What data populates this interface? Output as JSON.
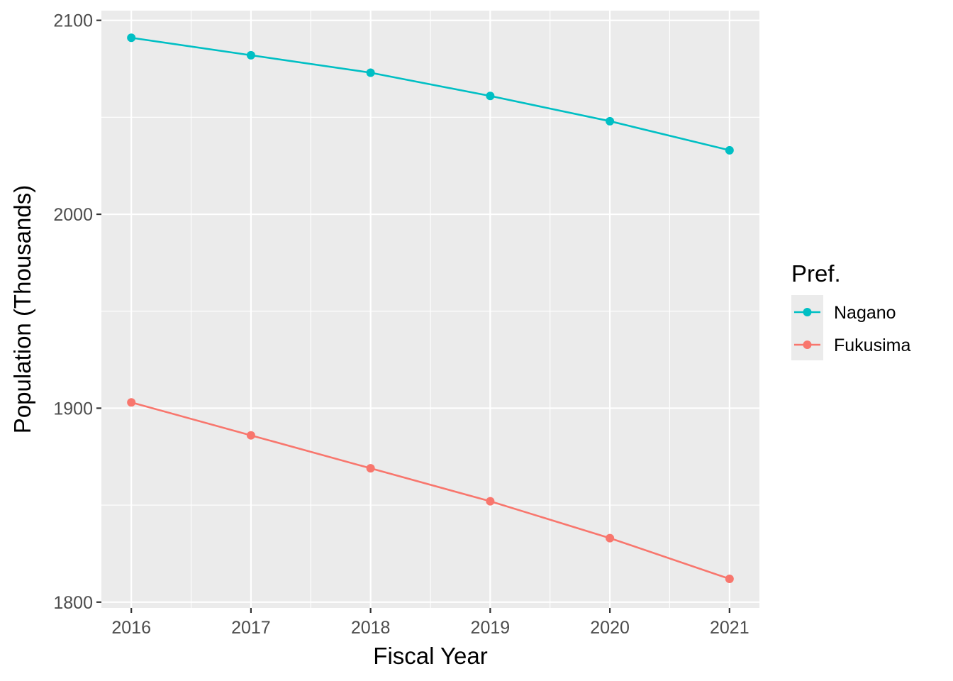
{
  "chart_data": {
    "type": "line",
    "xlabel": "Fiscal Year",
    "ylabel": "Population (Thousands)",
    "x": [
      2016,
      2017,
      2018,
      2019,
      2020,
      2021
    ],
    "x_tick_labels": [
      "2016",
      "2017",
      "2018",
      "2019",
      "2020",
      "2021"
    ],
    "y_ticks": [
      1800,
      1900,
      2000,
      2100
    ],
    "y_tick_labels": [
      "1800",
      "1900",
      "2000",
      "2100"
    ],
    "ylim": [
      1797,
      2105
    ],
    "xlim": [
      2015.75,
      2021.25
    ],
    "grid": true,
    "legend": {
      "title": "Pref.",
      "position": "right",
      "entries": [
        "Nagano",
        "Fukusima"
      ]
    },
    "series": [
      {
        "name": "Nagano",
        "color": "#00BFC4",
        "values": [
          2091,
          2082,
          2073,
          2061,
          2048,
          2033
        ]
      },
      {
        "name": "Fukusima",
        "color": "#F8766D",
        "values": [
          1903,
          1886,
          1869,
          1852,
          1833,
          1812
        ]
      }
    ]
  }
}
